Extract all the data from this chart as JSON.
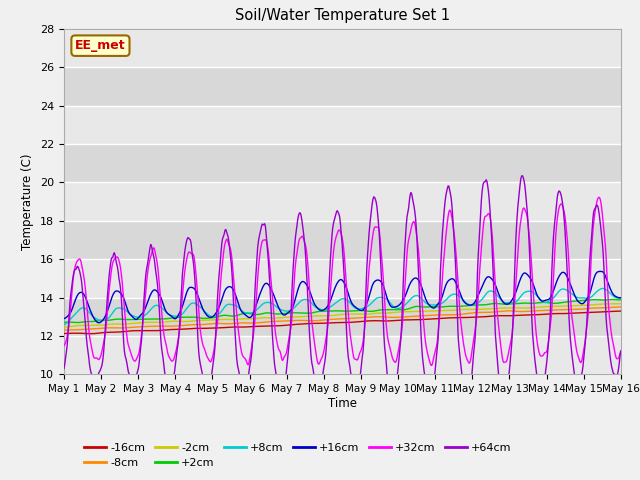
{
  "title": "Soil/Water Temperature Set 1",
  "xlabel": "Time",
  "ylabel": "Temperature (C)",
  "ylim": [
    10,
    28
  ],
  "xlim": [
    0,
    15
  ],
  "xtick_labels": [
    "May 1",
    "May 2",
    "May 3",
    "May 4",
    "May 5",
    "May 6",
    "May 7",
    "May 8",
    "May 9",
    "May 10",
    "May 11",
    "May 12",
    "May 13",
    "May 14",
    "May 15",
    "May 16"
  ],
  "ytick_vals": [
    10,
    12,
    14,
    16,
    18,
    20,
    22,
    24,
    26,
    28
  ],
  "annotation_text": "EE_met",
  "annotation_bg": "#ffffcc",
  "annotation_border": "#996600",
  "annotation_text_color": "#cc0000",
  "series_colors": {
    "-16cm": "#cc0000",
    "-8cm": "#ff8800",
    "-2cm": "#cccc00",
    "+2cm": "#00cc00",
    "+8cm": "#00cccc",
    "+16cm": "#0000cc",
    "+32cm": "#ff00ff",
    "+64cm": "#9900cc"
  },
  "background_color": "#f0f0f0",
  "plot_bg_light": "#e8e8e8",
  "plot_bg_dark": "#d8d8d8",
  "grid_color": "#ffffff"
}
